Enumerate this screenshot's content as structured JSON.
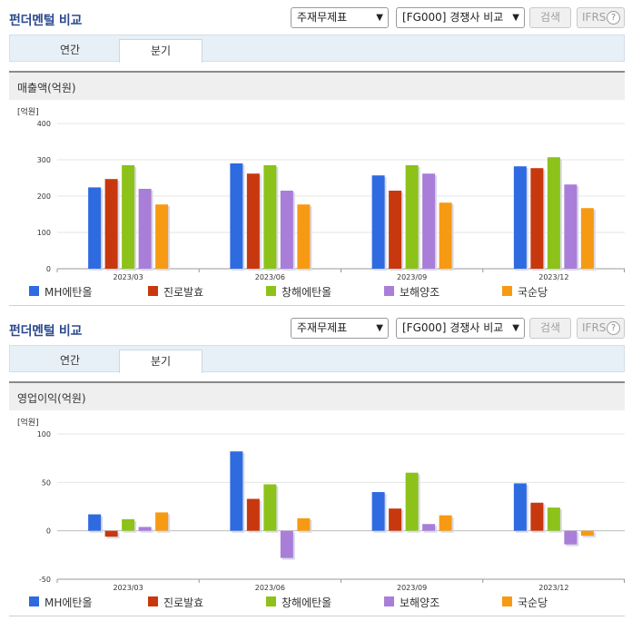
{
  "colors": {
    "title": "#2b4a8f",
    "series": [
      "#2e6be0",
      "#c8380f",
      "#8cc21a",
      "#a97ed8",
      "#f79a13"
    ],
    "grid": "#e4e4e4",
    "axis": "#999999"
  },
  "sections": [
    {
      "title": "펀더멘털 비교",
      "select1": "주재무제표",
      "select2": "[FG000] 경쟁사 비교",
      "search_label": "검색",
      "ifrs_label": "IFRS",
      "help_icon": "?",
      "tabs": [
        "연간",
        "분기"
      ],
      "active_tab": "분기",
      "subtitle": "매출액(억원)",
      "chart_data": {
        "type": "bar",
        "unit_label": "[억원]",
        "categories": [
          "2023/03",
          "2023/06",
          "2023/09",
          "2023/12"
        ],
        "series": [
          {
            "name": "MH에탄올",
            "values": [
              224,
              290,
              257,
              282
            ]
          },
          {
            "name": "진로발효",
            "values": [
              247,
              262,
              215,
              277
            ]
          },
          {
            "name": "창해에탄올",
            "values": [
              285,
              285,
              285,
              307
            ]
          },
          {
            "name": "보해양조",
            "values": [
              220,
              215,
              262,
              232
            ]
          },
          {
            "name": "국순당",
            "values": [
              177,
              177,
              182,
              167
            ]
          }
        ],
        "ylim": [
          0,
          400
        ],
        "yticks": [
          0,
          100,
          200,
          300,
          400
        ],
        "grid": true,
        "legend": "bottom"
      }
    },
    {
      "title": "펀더멘털 비교",
      "select1": "주재무제표",
      "select2": "[FG000] 경쟁사 비교",
      "search_label": "검색",
      "ifrs_label": "IFRS",
      "help_icon": "?",
      "tabs": [
        "연간",
        "분기"
      ],
      "active_tab": "분기",
      "subtitle": "영업이익(억원)",
      "chart_data": {
        "type": "bar",
        "unit_label": "[억원]",
        "categories": [
          "2023/03",
          "2023/06",
          "2023/09",
          "2023/12"
        ],
        "series": [
          {
            "name": "MH에탄올",
            "values": [
              17,
              82,
              40,
              49
            ]
          },
          {
            "name": "진로발효",
            "values": [
              -6,
              33,
              23,
              29
            ]
          },
          {
            "name": "창해에탄올",
            "values": [
              12,
              48,
              60,
              24
            ]
          },
          {
            "name": "보해양조",
            "values": [
              4,
              -28,
              7,
              -14
            ]
          },
          {
            "name": "국순당",
            "values": [
              19,
              13,
              16,
              -5
            ]
          }
        ],
        "ylim": [
          -50,
          100
        ],
        "yticks": [
          -50,
          0,
          50,
          100
        ],
        "grid": true,
        "legend": "bottom"
      }
    }
  ]
}
